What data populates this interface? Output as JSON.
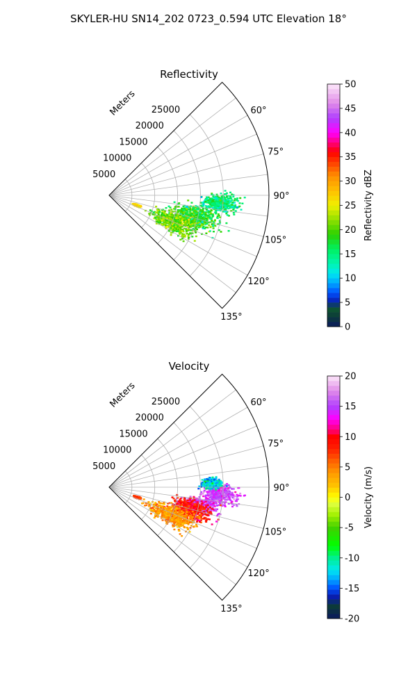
{
  "title": "SKYLER-HU  SN14_202  0723_0.594 UTC Elevation 18°",
  "chart_data": [
    {
      "type": "heatmap",
      "subtype": "polar-sector",
      "title": "Reflectivity",
      "range_label": "Meters",
      "range_ticks": [
        5000,
        10000,
        15000,
        20000,
        25000
      ],
      "range_limit": 35000,
      "azimuth_range": [
        45,
        135
      ],
      "azimuth_ticks": [
        "60°",
        "75°",
        "90°",
        "105°",
        "120°",
        "135°"
      ],
      "azimuth_tick_values": [
        60,
        75,
        90,
        105,
        120,
        135
      ],
      "grid": true,
      "colorbar": {
        "label": "Reflectivity dBZ",
        "min": 0,
        "max": 50,
        "ticks": [
          0,
          5,
          10,
          15,
          20,
          25,
          30,
          35,
          40,
          45,
          50
        ]
      },
      "echo_regions": [
        {
          "az_center": 104,
          "range_center": 19500,
          "az_spread": 5,
          "range_spread": 3500,
          "value_center": 18,
          "value_spread": 4
        },
        {
          "az_center": 94,
          "range_center": 24500,
          "az_spread": 3,
          "range_spread": 2500,
          "value_center": 15,
          "value_spread": 3
        },
        {
          "az_center": 113,
          "range_center": 15500,
          "az_spread": 5,
          "range_spread": 3500,
          "value_center": 21,
          "value_spread": 3
        },
        {
          "az_center": 110,
          "range_center": 6500,
          "az_spread": 1,
          "range_spread": 500,
          "value_center": 27,
          "value_spread": 2
        }
      ]
    },
    {
      "type": "heatmap",
      "subtype": "polar-sector",
      "title": "Velocity",
      "range_label": "Meters",
      "range_ticks": [
        5000,
        10000,
        15000,
        20000,
        25000
      ],
      "range_limit": 35000,
      "azimuth_range": [
        45,
        135
      ],
      "azimuth_ticks": [
        "60°",
        "75°",
        "90°",
        "105°",
        "120°",
        "135°"
      ],
      "azimuth_tick_values": [
        60,
        75,
        90,
        105,
        120,
        135
      ],
      "grid": true,
      "colorbar": {
        "label": "Velocity (m/s)",
        "min": -20,
        "max": 20,
        "ticks": [
          -20,
          -15,
          -10,
          -5,
          0,
          5,
          10,
          15,
          20
        ]
      },
      "echo_regions": [
        {
          "az_center": 94,
          "range_center": 24500,
          "az_spread": 3,
          "range_spread": 2500,
          "value_center": 15,
          "value_spread": 2
        },
        {
          "az_center": 88,
          "range_center": 22500,
          "az_spread": 2,
          "range_spread": 1500,
          "value_center": -12,
          "value_spread": 3
        },
        {
          "az_center": 101,
          "range_center": 20500,
          "az_spread": 3,
          "range_spread": 2500,
          "value_center": 15,
          "value_spread": 2
        },
        {
          "az_center": 105,
          "range_center": 18500,
          "az_spread": 4,
          "range_spread": 3000,
          "value_center": 9,
          "value_spread": 2
        },
        {
          "az_center": 114,
          "range_center": 15000,
          "az_spread": 5,
          "range_spread": 3500,
          "value_center": 4,
          "value_spread": 2
        },
        {
          "az_center": 110,
          "range_center": 6500,
          "az_spread": 1,
          "range_spread": 500,
          "value_center": 7,
          "value_spread": 1
        }
      ]
    }
  ]
}
